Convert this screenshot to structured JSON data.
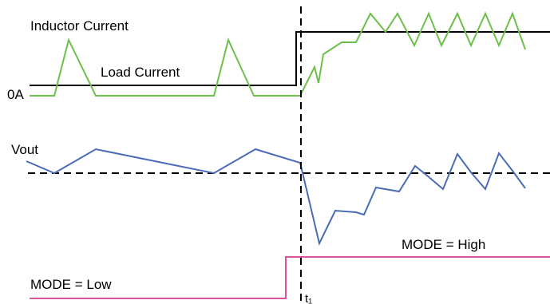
{
  "labels": {
    "inductor_current": "Inductor Current",
    "load_current": "Load Current",
    "zero_amp": "0A",
    "vout": "Vout",
    "mode_high": "MODE = High",
    "mode_low": "MODE = Low",
    "t1": "t₁"
  },
  "colors": {
    "load_current": "#000000",
    "inductor_current": "#6cc04a",
    "vout": "#4a6bb5",
    "mode": "#d9539e",
    "reference": "#000000"
  }
}
